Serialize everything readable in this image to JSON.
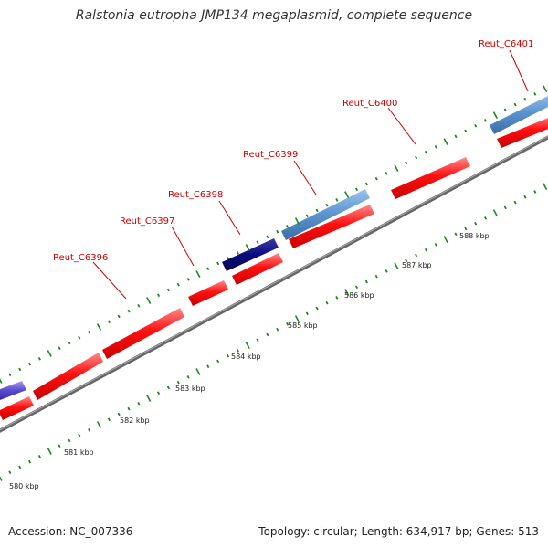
{
  "title": "Ralstonia eutropha JMP134 megaplasmid, complete sequence",
  "footer": {
    "accession": "Accession: NC_007336",
    "summary": "Topology: circular; Length: 634,917 bp; Genes: 513"
  },
  "colors": {
    "forward_gene": "#ff0000",
    "gene_dark_blue": "#0a0a80",
    "gene_steel_blue": "#4a86c8",
    "gene_purple": "#5a4ad0",
    "tick": "#1a8a1a",
    "label_red": "#cc0000",
    "backbone": "#888888"
  },
  "ruler_labels": [
    "580 kbp",
    "581 kbp",
    "582 kbp",
    "583 kbp",
    "584 kbp",
    "585 kbp",
    "586 kbp",
    "587 kbp",
    "588 kbp"
  ],
  "gene_labels": [
    "Reut_C6396",
    "Reut_C6397",
    "Reut_C6398",
    "Reut_C6399",
    "Reut_C6400",
    "Reut_C6401"
  ]
}
